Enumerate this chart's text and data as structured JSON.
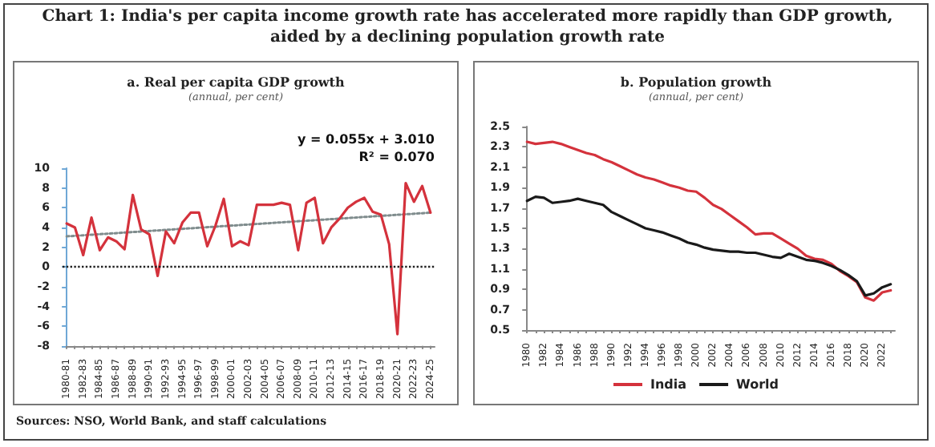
{
  "chart_data": [
    {
      "type": "line",
      "title": "a. Real per capita GDP growth",
      "subtitle": "(annual, per cent)",
      "annotations": [
        "Chart 1: India's per capita income growth rate has accelerated more rapidly than GDP growth, aided by a declining population growth rate",
        "y = 0.055x + 3.010",
        "R² = 0.070",
        "Sources: NSO, World Bank, and staff calculations"
      ],
      "categories": [
        "1980-81",
        null,
        "1982-83",
        null,
        "1984-85",
        null,
        "1986-87",
        null,
        "1988-89",
        null,
        "1990-91",
        null,
        "1992-93",
        null,
        "1994-95",
        null,
        "1996-97",
        null,
        "1998-99",
        null,
        "2000-01",
        null,
        "2002-03",
        null,
        "2004-05",
        null,
        "2006-07",
        null,
        "2008-09",
        null,
        "2010-11",
        null,
        "2012-13",
        null,
        "2014-15",
        null,
        "2016-17",
        null,
        "2018-19",
        null,
        "2020-21",
        null,
        "2022-23",
        null,
        "2024-25"
      ],
      "series": [
        {
          "color": "#d4323c",
          "values": [
            4.4,
            4.0,
            1.2,
            5.0,
            1.7,
            3.0,
            2.6,
            1.8,
            7.3,
            3.8,
            3.3,
            -0.9,
            3.6,
            2.4,
            4.5,
            5.5,
            5.5,
            2.1,
            4.2,
            6.9,
            2.1,
            2.6,
            2.2,
            6.3,
            6.3,
            6.3,
            6.5,
            6.3,
            1.7,
            6.5,
            7.0,
            2.4,
            4.0,
            4.9,
            6.0,
            6.6,
            7.0,
            5.6,
            5.3,
            2.3,
            -6.8,
            8.5,
            6.6,
            8.2,
            5.5
          ]
        },
        {
          "type": "line",
          "color": "#7f8c8d",
          "line_style": "dotted",
          "x": [
            "1980-81",
            "2024-25"
          ],
          "values": [
            3.1,
            5.5
          ]
        }
      ],
      "ylim": [
        -8,
        10
      ],
      "yticks": [
        -8,
        -6,
        -4,
        -2,
        0,
        2,
        4,
        6,
        8,
        10
      ],
      "ref_lines": [
        {
          "axis": "y",
          "value": 0,
          "color": "#222222",
          "line_style": "dotted"
        }
      ],
      "marker": "none",
      "grid": false
    },
    {
      "type": "line",
      "title": "b. Population growth",
      "subtitle": "(annual, per cent)",
      "categories": [
        "1980",
        null,
        "1982",
        null,
        "1984",
        null,
        "1986",
        null,
        "1988",
        null,
        "1990",
        null,
        "1992",
        null,
        "1994",
        null,
        "1996",
        null,
        "1998",
        null,
        "2000",
        null,
        "2002",
        null,
        "2004",
        null,
        "2006",
        null,
        "2008",
        null,
        "2010",
        null,
        "2012",
        null,
        "2014",
        null,
        "2016",
        null,
        "2018",
        null,
        "2020",
        null,
        "2022",
        null
      ],
      "series": [
        {
          "name": "India",
          "color": "#d4323c",
          "values": [
            2.35,
            2.33,
            2.34,
            2.35,
            2.33,
            2.3,
            2.27,
            2.24,
            2.22,
            2.18,
            2.15,
            2.11,
            2.07,
            2.03,
            2.0,
            1.98,
            1.95,
            1.92,
            1.9,
            1.87,
            1.86,
            1.8,
            1.73,
            1.69,
            1.63,
            1.57,
            1.51,
            1.44,
            1.45,
            1.45,
            1.4,
            1.35,
            1.3,
            1.23,
            1.2,
            1.19,
            1.15,
            1.08,
            1.03,
            0.97,
            0.82,
            0.79,
            0.87,
            0.89
          ]
        },
        {
          "name": "World",
          "color": "#1a1a1a",
          "values": [
            1.77,
            1.81,
            1.8,
            1.75,
            1.76,
            1.77,
            1.79,
            1.77,
            1.75,
            1.73,
            1.66,
            1.62,
            1.58,
            1.54,
            1.5,
            1.48,
            1.46,
            1.43,
            1.4,
            1.36,
            1.34,
            1.31,
            1.29,
            1.28,
            1.27,
            1.27,
            1.26,
            1.26,
            1.24,
            1.22,
            1.21,
            1.25,
            1.22,
            1.19,
            1.18,
            1.16,
            1.13,
            1.09,
            1.04,
            0.98,
            0.84,
            0.86,
            0.92,
            0.95
          ]
        }
      ],
      "ylim": [
        0.5,
        2.5
      ],
      "yticks": [
        0.5,
        0.7,
        0.9,
        1.1,
        1.3,
        1.5,
        1.7,
        1.9,
        2.1,
        2.3,
        2.5
      ],
      "legend": "bottom",
      "marker": "none",
      "grid": false
    }
  ]
}
